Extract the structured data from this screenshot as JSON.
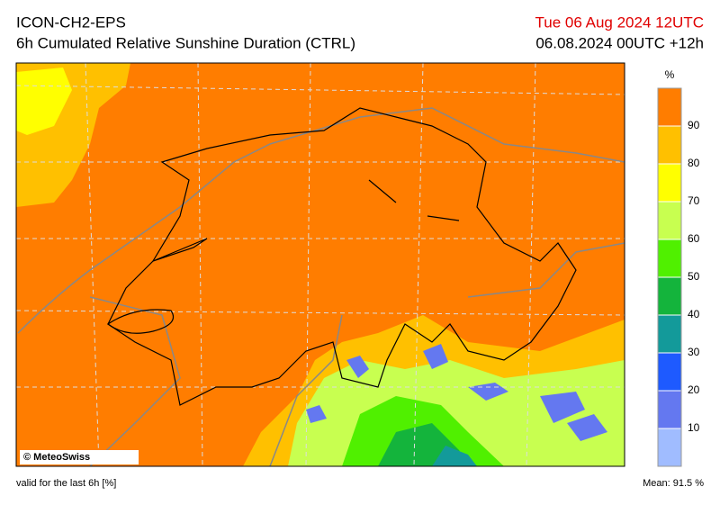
{
  "header": {
    "model": "ICON-CH2-EPS",
    "title": "6h Cumulated Relative Sunshine Duration (CTRL)",
    "date": "Tue 06 Aug 2024 12UTC",
    "run": "06.08.2024 00UTC +12h"
  },
  "map": {
    "copyright": "© MeteoSwiss"
  },
  "legend": {
    "unit": "%",
    "ticks": [
      10,
      20,
      30,
      40,
      50,
      60,
      70,
      80,
      90
    ],
    "min": 0,
    "max": 100,
    "colors": [
      "#a0bcff",
      "#6478f0",
      "#1e5aff",
      "#139a9a",
      "#14b43c",
      "#50f000",
      "#c8ff50",
      "#ffff00",
      "#ffc000",
      "#ff7d00"
    ]
  },
  "footer": {
    "valid": "valid for the last 6h [%]",
    "mean": "Mean:  91.5 %"
  }
}
